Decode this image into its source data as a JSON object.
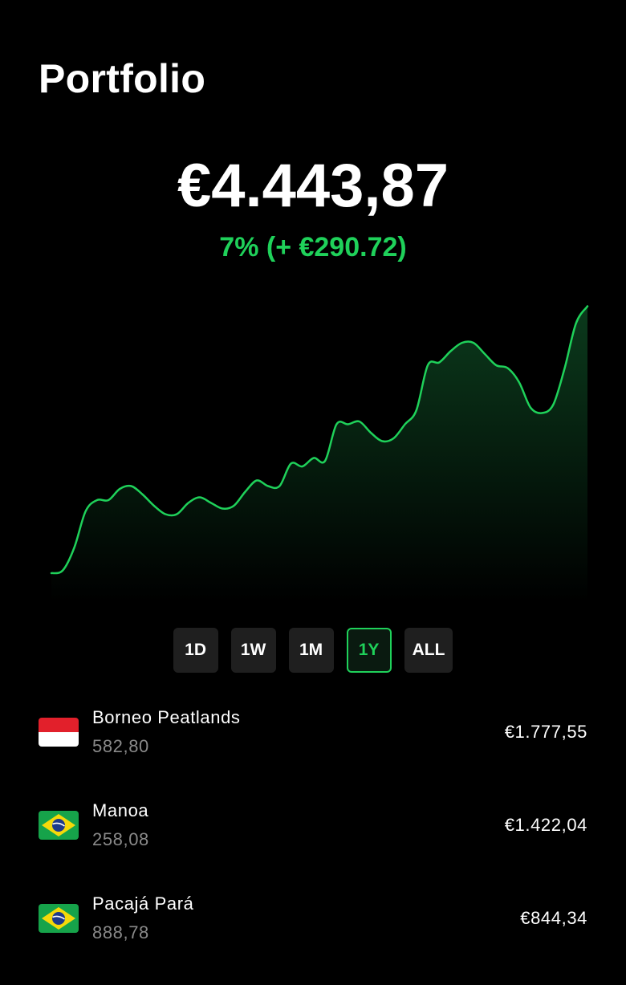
{
  "header": {
    "title": "Portfolio"
  },
  "summary": {
    "balance": "€4.443,87",
    "change": "7% (+ €290.72)"
  },
  "chart_data": {
    "type": "area",
    "title": "",
    "xlabel": "",
    "ylabel": "",
    "grid": false,
    "ylim": [
      0,
      100
    ],
    "values": [
      0,
      1,
      9,
      22,
      26,
      26,
      30,
      31,
      28,
      24,
      21,
      21,
      25,
      27,
      25,
      23,
      24,
      29,
      33,
      31,
      31,
      39,
      38,
      41,
      40,
      53,
      53,
      54,
      50,
      47,
      48,
      53,
      58,
      74,
      75,
      79,
      82,
      82,
      78,
      74,
      73,
      68,
      59,
      57,
      60,
      73,
      89,
      95
    ],
    "series": [
      {
        "values": [
          0,
          1,
          9,
          22,
          26,
          26,
          30,
          31,
          28,
          24,
          21,
          21,
          25,
          27,
          25,
          23,
          24,
          29,
          33,
          31,
          31,
          39,
          38,
          41,
          40,
          53,
          53,
          54,
          50,
          47,
          48,
          53,
          58,
          74,
          75,
          79,
          82,
          82,
          78,
          74,
          73,
          68,
          59,
          57,
          60,
          73,
          89,
          95
        ]
      }
    ],
    "colors": {
      "line": "#1fd15a",
      "fill_top": "#0b3a1c"
    }
  },
  "ranges": {
    "items": [
      {
        "label": "1D"
      },
      {
        "label": "1W"
      },
      {
        "label": "1M"
      },
      {
        "label": "1Y",
        "active": true
      },
      {
        "label": "ALL"
      }
    ],
    "active_label": "1Y"
  },
  "holdings": [
    {
      "name": "Borneo Peatlands",
      "quantity": "582,80",
      "value": "€1.777,55",
      "flag": "indonesia-flag-icon"
    },
    {
      "name": "Manoa",
      "quantity": "258,08",
      "value": "€1.422,04",
      "flag": "brazil-flag-icon"
    },
    {
      "name": "Pacajá Pará",
      "quantity": "888,78",
      "value": "€844,34",
      "flag": "brazil-flag-icon"
    }
  ],
  "theme": {
    "background": "#000000",
    "accent": "#1fd15a",
    "muted_text": "#8a8a8a",
    "button_bg": "#1f1f1f"
  }
}
